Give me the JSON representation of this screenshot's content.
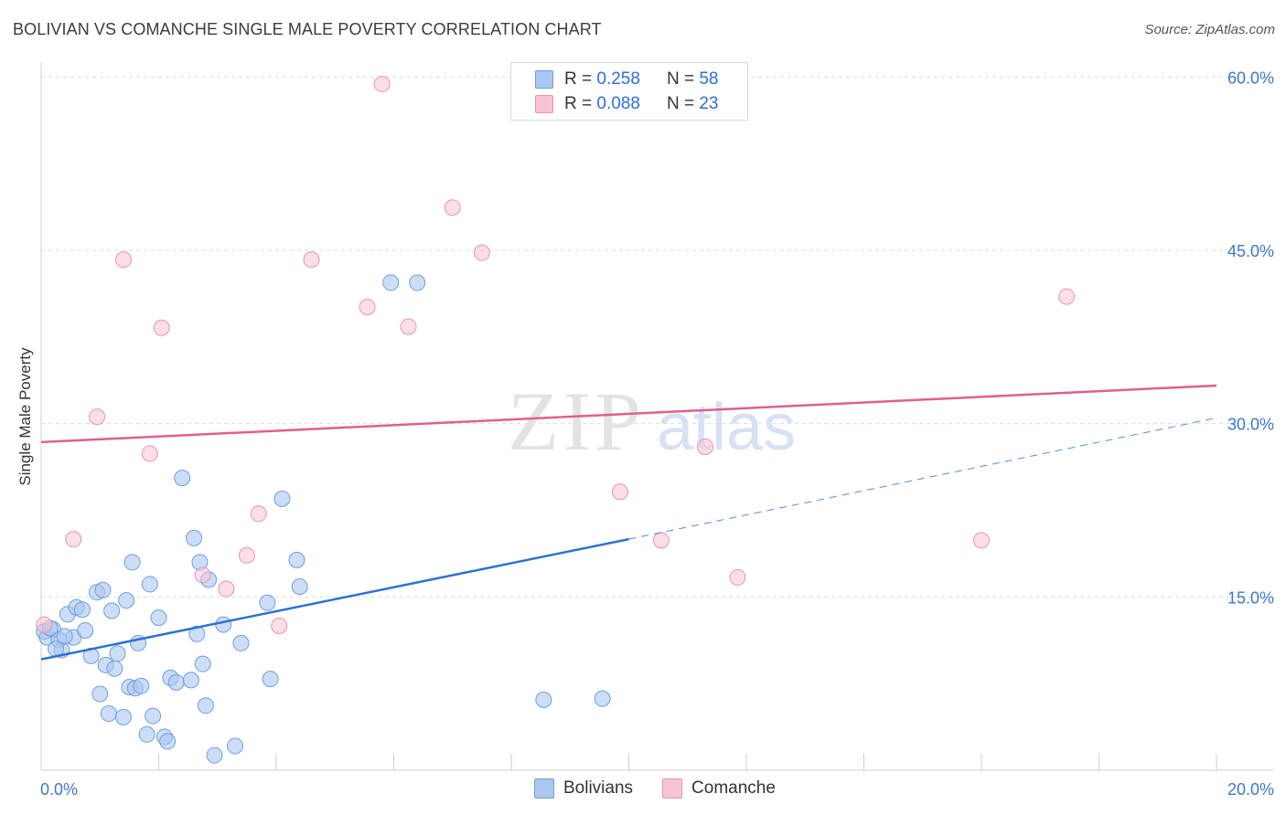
{
  "title": "BOLIVIAN VS COMANCHE SINGLE MALE POVERTY CORRELATION CHART",
  "source": "Source: ZipAtlas.com",
  "watermark": {
    "zip": "ZIP",
    "atlas": "atlas"
  },
  "legend": {
    "r_label": "R =",
    "n_label": "N =",
    "bolivians": {
      "r": "0.258",
      "n": "58"
    },
    "comanche": {
      "r": "0.088",
      "n": "23"
    }
  },
  "colors": {
    "bolivians_fill": "#aac7f0",
    "bolivians_stroke": "#6f9ee0",
    "bolivians_line": "#2b72d0",
    "comanche_fill": "#f7c3d3",
    "comanche_stroke": "#ea93b0",
    "comanche_line": "#e0608a",
    "tick_label": "#3a78d0",
    "grid": "#dcdcdc"
  },
  "chart_data": {
    "type": "scatter",
    "title": "BOLIVIAN VS COMANCHE SINGLE MALE POVERTY CORRELATION CHART",
    "xlabel": "",
    "ylabel": "Single Male Poverty",
    "xlim": [
      0,
      20
    ],
    "ylim": [
      0,
      60
    ],
    "x_tick_labels": [
      "0.0%",
      "20.0%"
    ],
    "y_ticks": [
      15,
      30,
      45,
      60
    ],
    "y_tick_labels": [
      "15.0%",
      "30.0%",
      "45.0%",
      "60.0%"
    ],
    "series": [
      {
        "name": "Bolivians",
        "r": 0.258,
        "n": 58,
        "points": [
          [
            0.05,
            12.0
          ],
          [
            0.1,
            11.5
          ],
          [
            0.2,
            12.2
          ],
          [
            0.3,
            11.3
          ],
          [
            0.35,
            10.4
          ],
          [
            0.45,
            13.5
          ],
          [
            0.55,
            11.5
          ],
          [
            0.6,
            14.1
          ],
          [
            0.7,
            13.9
          ],
          [
            0.75,
            12.1
          ],
          [
            0.85,
            9.9
          ],
          [
            0.95,
            15.4
          ],
          [
            1.0,
            6.6
          ],
          [
            1.05,
            15.6
          ],
          [
            1.1,
            9.1
          ],
          [
            1.15,
            4.9
          ],
          [
            1.2,
            13.8
          ],
          [
            1.25,
            8.8
          ],
          [
            1.3,
            10.1
          ],
          [
            1.4,
            4.6
          ],
          [
            1.45,
            14.7
          ],
          [
            1.5,
            7.2
          ],
          [
            1.55,
            18.0
          ],
          [
            1.6,
            7.1
          ],
          [
            1.65,
            11.0
          ],
          [
            1.7,
            7.3
          ],
          [
            1.8,
            3.1
          ],
          [
            1.85,
            16.1
          ],
          [
            1.9,
            4.7
          ],
          [
            2.0,
            13.2
          ],
          [
            2.1,
            2.9
          ],
          [
            2.15,
            2.5
          ],
          [
            2.2,
            8.0
          ],
          [
            2.3,
            7.6
          ],
          [
            2.4,
            25.3
          ],
          [
            2.55,
            7.8
          ],
          [
            2.6,
            20.1
          ],
          [
            2.65,
            11.8
          ],
          [
            2.7,
            18.0
          ],
          [
            2.75,
            9.2
          ],
          [
            2.8,
            5.6
          ],
          [
            2.85,
            16.5
          ],
          [
            2.95,
            1.3
          ],
          [
            3.1,
            12.6
          ],
          [
            3.3,
            2.1
          ],
          [
            3.4,
            11.0
          ],
          [
            3.85,
            14.5
          ],
          [
            3.9,
            7.9
          ],
          [
            4.1,
            23.5
          ],
          [
            4.35,
            18.2
          ],
          [
            4.4,
            15.9
          ],
          [
            5.95,
            42.2
          ],
          [
            6.4,
            42.2
          ],
          [
            8.55,
            6.1
          ],
          [
            9.55,
            6.2
          ],
          [
            0.15,
            12.3
          ],
          [
            0.25,
            10.5
          ],
          [
            0.4,
            11.6
          ]
        ]
      },
      {
        "name": "Comanche",
        "r": 0.088,
        "n": 23,
        "points": [
          [
            0.05,
            12.6
          ],
          [
            0.55,
            20.0
          ],
          [
            0.95,
            30.6
          ],
          [
            1.4,
            44.2
          ],
          [
            1.85,
            27.4
          ],
          [
            2.05,
            38.3
          ],
          [
            2.75,
            16.9
          ],
          [
            3.15,
            15.7
          ],
          [
            3.5,
            18.6
          ],
          [
            3.7,
            22.2
          ],
          [
            4.05,
            12.5
          ],
          [
            4.6,
            44.2
          ],
          [
            5.55,
            40.1
          ],
          [
            6.25,
            38.4
          ],
          [
            5.8,
            59.4
          ],
          [
            7.0,
            48.7
          ],
          [
            7.5,
            44.8
          ],
          [
            9.85,
            24.1
          ],
          [
            10.55,
            19.9
          ],
          [
            11.3,
            28.0
          ],
          [
            11.85,
            16.7
          ],
          [
            16.0,
            19.9
          ],
          [
            17.45,
            41.0
          ]
        ]
      }
    ],
    "trend_lines": [
      {
        "series": "Bolivians",
        "solid": [
          [
            0,
            9.6
          ],
          [
            10,
            20.0
          ]
        ],
        "dashed": [
          [
            10,
            20.0
          ],
          [
            20,
            30.5
          ]
        ]
      },
      {
        "series": "Comanche",
        "solid": [
          [
            0,
            28.4
          ],
          [
            20,
            33.3
          ]
        ]
      }
    ]
  },
  "bottom_legend": [
    "Bolivians",
    "Comanche"
  ]
}
